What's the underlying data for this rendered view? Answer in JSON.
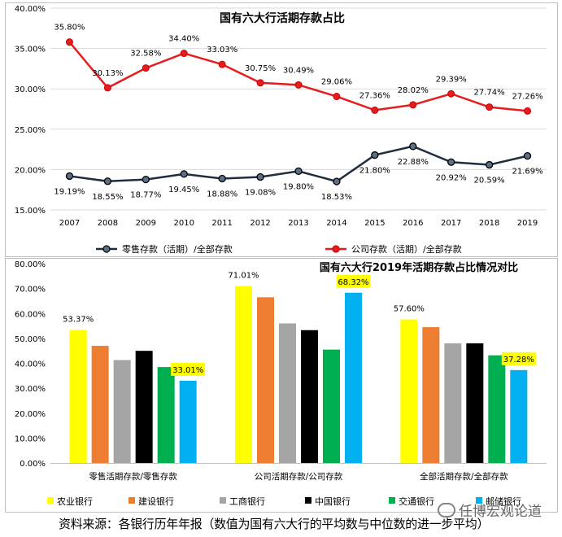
{
  "chart_data": [
    {
      "type": "line",
      "title": "国有六大行活期存款占比",
      "x": [
        "2007",
        "2008",
        "2009",
        "2010",
        "2011",
        "2012",
        "2013",
        "2014",
        "2015",
        "2016",
        "2017",
        "2018",
        "2019"
      ],
      "ylim": [
        15,
        40
      ],
      "yticks": [
        "15.00%",
        "20.00%",
        "25.00%",
        "30.00%",
        "35.00%",
        "40.00%"
      ],
      "series": [
        {
          "name": "零售存款（活期）/全部存款",
          "color": "#1f2d3d",
          "values": [
            19.19,
            18.55,
            18.77,
            19.45,
            18.88,
            19.08,
            19.8,
            18.53,
            21.8,
            22.88,
            20.92,
            20.59,
            21.69
          ],
          "labels": [
            "19.19%",
            "18.55%",
            "18.77%",
            "19.45%",
            "18.88%",
            "19.08%",
            "19.80%",
            "18.53%",
            "21.80%",
            "22.88%",
            "20.92%",
            "20.59%",
            "21.69%"
          ]
        },
        {
          "name": "公司存款（活期）/全部存款",
          "color": "#e41e1e",
          "values": [
            35.8,
            30.13,
            32.58,
            34.4,
            33.03,
            30.75,
            30.49,
            29.06,
            27.36,
            28.02,
            29.39,
            27.74,
            27.26
          ],
          "labels": [
            "35.80%",
            "30.13%",
            "32.58%",
            "34.40%",
            "33.03%",
            "30.75%",
            "30.49%",
            "29.06%",
            "27.36%",
            "28.02%",
            "29.39%",
            "27.74%",
            "27.26%"
          ]
        }
      ]
    },
    {
      "type": "bar",
      "title": "国有六大行2019年活期存款占比情况对比",
      "categories": [
        "零售活期存款/零售存款",
        "公司活期存款/公司存款",
        "全部活期存款/全部存款"
      ],
      "ylim": [
        0,
        80
      ],
      "yticks": [
        "0.00%",
        "10.00%",
        "20.00%",
        "30.00%",
        "40.00%",
        "50.00%",
        "60.00%",
        "70.00%",
        "80.00%"
      ],
      "series": [
        {
          "name": "农业银行",
          "color": "#ffff00",
          "values": [
            53.37,
            71.01,
            57.6
          ]
        },
        {
          "name": "建设银行",
          "color": "#ed7d31",
          "values": [
            47.0,
            66.5,
            54.5
          ]
        },
        {
          "name": "工商银行",
          "color": "#a5a5a5",
          "values": [
            41.3,
            56.0,
            48.0
          ]
        },
        {
          "name": "中国银行",
          "color": "#000000",
          "values": [
            45.0,
            53.3,
            48.0
          ]
        },
        {
          "name": "交通银行",
          "color": "#00b050",
          "values": [
            38.5,
            45.5,
            43.2
          ]
        },
        {
          "name": "邮储银行",
          "color": "#00b0f0",
          "values": [
            33.01,
            68.32,
            37.28
          ]
        }
      ],
      "data_labels": [
        {
          "series": 0,
          "category": 0,
          "text": "53.37%"
        },
        {
          "series": 5,
          "category": 0,
          "text": "33.01%"
        },
        {
          "series": 0,
          "category": 1,
          "text": "71.01%"
        },
        {
          "series": 5,
          "category": 1,
          "text": "68.32%"
        },
        {
          "series": 0,
          "category": 2,
          "text": "57.60%"
        },
        {
          "series": 5,
          "category": 2,
          "text": "37.28%"
        }
      ]
    }
  ],
  "footer": {
    "source": "资料来源：各银行历年年报（数值为国有六大行的平均数与中位数的进一步平均）",
    "watermark": "任博宏观论道"
  }
}
